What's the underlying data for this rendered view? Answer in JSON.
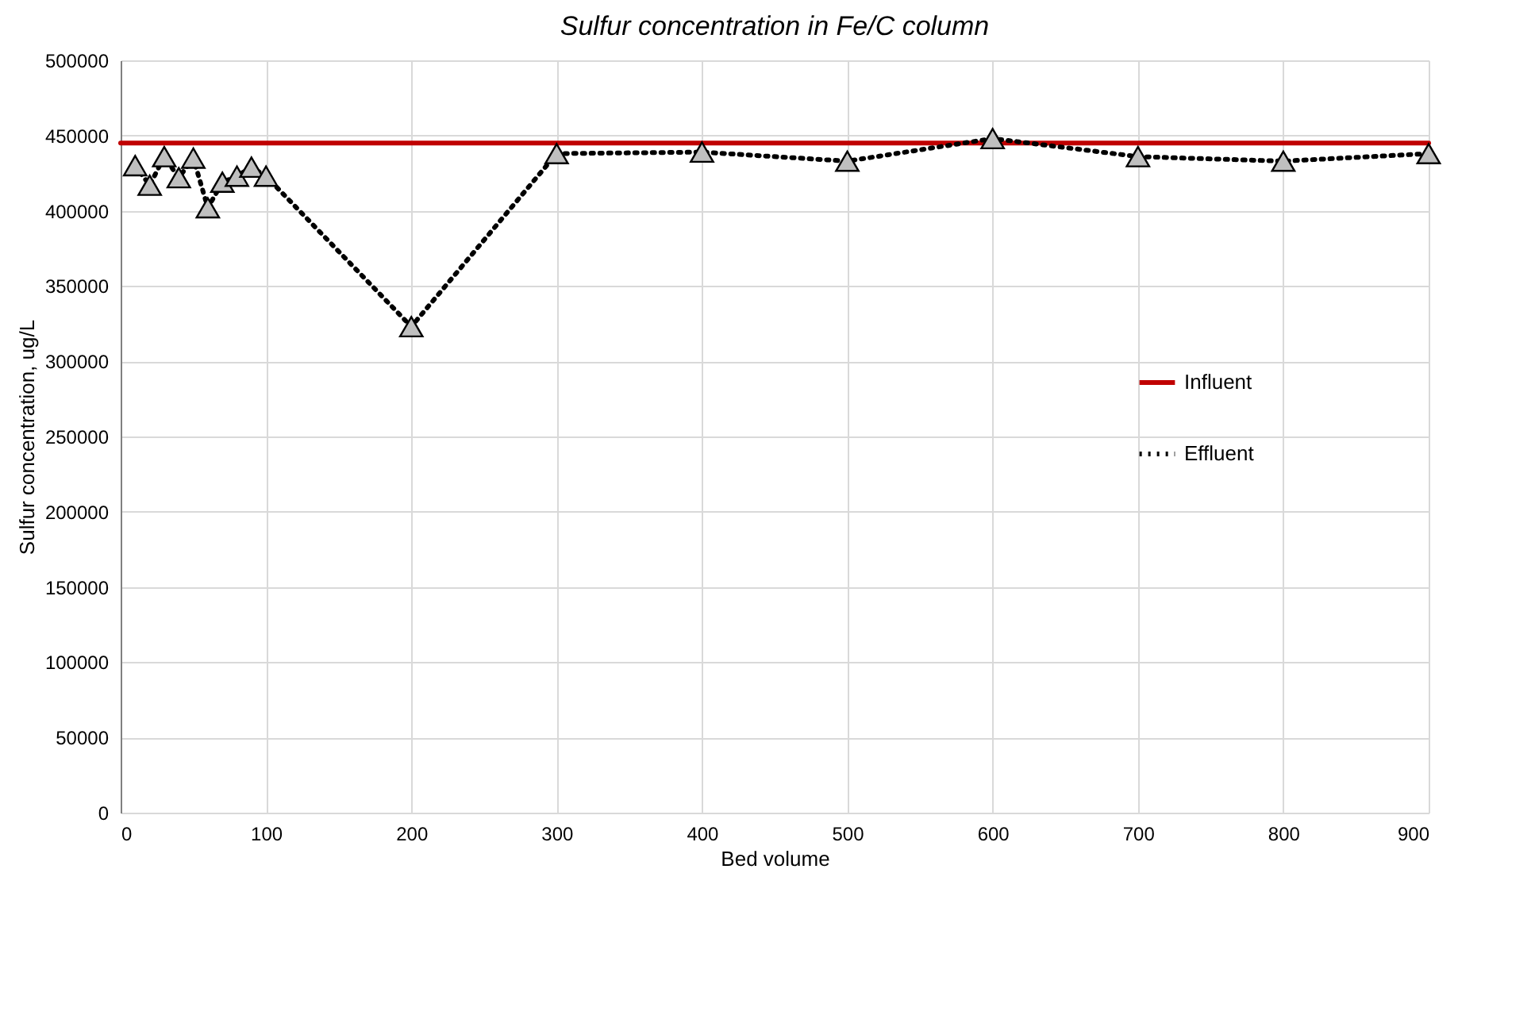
{
  "chart_data": {
    "type": "line",
    "title": "Sulfur concentration in Fe/C column",
    "xlabel": "Bed volume",
    "ylabel": "Sulfur concentration, ug/L",
    "xlim": [
      0,
      900
    ],
    "xticks": [
      0,
      100,
      200,
      300,
      400,
      500,
      600,
      700,
      800,
      900
    ],
    "ylim": [
      0,
      500000
    ],
    "yticks": [
      0,
      50000,
      100000,
      150000,
      200000,
      250000,
      300000,
      350000,
      400000,
      450000,
      500000
    ],
    "grid": true,
    "legend": "right",
    "series": [
      {
        "name": "Influent",
        "color": "#c00000",
        "x": [
          0,
          900
        ],
        "values": [
          445000,
          445000
        ],
        "marker": "none",
        "line_style": "solid"
      },
      {
        "name": "Effluent",
        "color": "#000000",
        "x": [
          10,
          20,
          30,
          40,
          50,
          60,
          70,
          80,
          90,
          100,
          200,
          300,
          400,
          500,
          600,
          700,
          800,
          900
        ],
        "values": [
          430000,
          417000,
          436000,
          422000,
          435000,
          402000,
          419000,
          423000,
          429000,
          423000,
          323000,
          438000,
          439000,
          433000,
          448000,
          436000,
          433000,
          438000
        ],
        "marker": "triangle",
        "line_style": "dotted"
      }
    ]
  }
}
